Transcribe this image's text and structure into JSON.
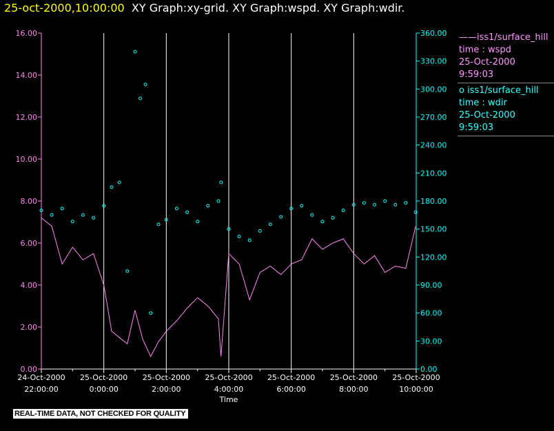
{
  "header": {
    "timestamp": "25-oct-2000,10:00:00",
    "graph_names": "XY Graph:xy-grid.  XY Graph:wspd.  XY Graph:wdir."
  },
  "legend": {
    "wspd": {
      "marker": "——",
      "source": "iss1/surface_hill",
      "field": "time : wspd",
      "date": "25-Oct-2000",
      "time": "9:59:03"
    },
    "wdir": {
      "marker": "o",
      "source": "iss1/surface_hill",
      "field": "time : wdir",
      "date": "25-Oct-2000",
      "time": "9:59:03"
    }
  },
  "notice": "REAL-TIME DATA, NOT CHECKED FOR QUALITY",
  "colors": {
    "wspd": "#ff88ee",
    "wdir": "#00ffff",
    "grid": "#ffffff"
  },
  "chart_data": {
    "type": "scatter",
    "xlabel": "Time",
    "x_range_hours": [
      -2,
      10
    ],
    "x_ticks": [
      {
        "h": -2,
        "date": "24-Oct-2000",
        "time": "22:00:00"
      },
      {
        "h": 0,
        "date": "25-Oct-2000",
        "time": "0:00:00"
      },
      {
        "h": 2,
        "date": "25-Oct-2000",
        "time": "2:00:00"
      },
      {
        "h": 4,
        "date": "25-Oct-2000",
        "time": "4:00:00"
      },
      {
        "h": 6,
        "date": "25-Oct-2000",
        "time": "6:00:00"
      },
      {
        "h": 8,
        "date": "25-Oct-2000",
        "time": "8:00:00"
      },
      {
        "h": 10,
        "date": "25-Oct-2000",
        "time": "10:00:00"
      }
    ],
    "left_axis": {
      "series": "wspd",
      "ylim": [
        0,
        16
      ],
      "ticks": [
        "0.00",
        "2.00",
        "4.00",
        "6.00",
        "8.00",
        "10.00",
        "12.00",
        "14.00",
        "16.00"
      ]
    },
    "right_axis": {
      "series": "wdir",
      "ylim": [
        0,
        360
      ],
      "ticks": [
        "0.00",
        "30.00",
        "60.00",
        "90.00",
        "120.00",
        "150.00",
        "180.00",
        "210.00",
        "240.00",
        "270.00",
        "300.00",
        "330.00",
        "360.00"
      ]
    },
    "grid": "vertical",
    "series": [
      {
        "name": "wspd",
        "style": "line",
        "axis": "left",
        "x": [
          "24-Oct-2000 22:00",
          "24-Oct-2000 22:20",
          "24-Oct-2000 22:40",
          "24-Oct-2000 23:00",
          "24-Oct-2000 23:20",
          "24-Oct-2000 23:40",
          "25-Oct-2000 0:00",
          "25-Oct-2000 0:15",
          "25-Oct-2000 0:30",
          "25-Oct-2000 0:45",
          "25-Oct-2000 1:00",
          "25-Oct-2000 1:15",
          "25-Oct-2000 1:30",
          "25-Oct-2000 1:45",
          "25-Oct-2000 2:00",
          "25-Oct-2000 2:20",
          "25-Oct-2000 2:40",
          "25-Oct-2000 3:00",
          "25-Oct-2000 3:20",
          "25-Oct-2000 3:40",
          "25-Oct-2000 3:45",
          "25-Oct-2000 4:00",
          "25-Oct-2000 4:20",
          "25-Oct-2000 4:40",
          "25-Oct-2000 5:00",
          "25-Oct-2000 5:20",
          "25-Oct-2000 5:40",
          "25-Oct-2000 6:00",
          "25-Oct-2000 6:20",
          "25-Oct-2000 6:40",
          "25-Oct-2000 7:00",
          "25-Oct-2000 7:20",
          "25-Oct-2000 7:40",
          "25-Oct-2000 8:00",
          "25-Oct-2000 8:20",
          "25-Oct-2000 8:40",
          "25-Oct-2000 9:00",
          "25-Oct-2000 9:20",
          "25-Oct-2000 9:40",
          "25-Oct-2000 9:59"
        ],
        "y": [
          7.2,
          6.8,
          5.0,
          5.8,
          5.2,
          5.5,
          4.0,
          1.8,
          1.5,
          1.2,
          2.8,
          1.4,
          0.6,
          1.3,
          1.8,
          2.3,
          2.9,
          3.4,
          3.0,
          2.4,
          0.6,
          5.5,
          5.0,
          3.3,
          4.6,
          4.9,
          4.5,
          5.0,
          5.2,
          6.2,
          5.7,
          6.0,
          6.2,
          5.5,
          5.0,
          5.4,
          4.6,
          4.9,
          4.8,
          6.8
        ]
      },
      {
        "name": "wdir",
        "style": "circles",
        "axis": "right",
        "x": [
          "24-Oct-2000 22:00",
          "24-Oct-2000 22:20",
          "24-Oct-2000 22:40",
          "24-Oct-2000 23:00",
          "24-Oct-2000 23:20",
          "24-Oct-2000 23:40",
          "25-Oct-2000 0:00",
          "25-Oct-2000 0:15",
          "25-Oct-2000 0:30",
          "25-Oct-2000 0:45",
          "25-Oct-2000 1:00",
          "25-Oct-2000 1:10",
          "25-Oct-2000 1:20",
          "25-Oct-2000 1:30",
          "25-Oct-2000 1:45",
          "25-Oct-2000 2:00",
          "25-Oct-2000 2:20",
          "25-Oct-2000 2:40",
          "25-Oct-2000 3:00",
          "25-Oct-2000 3:20",
          "25-Oct-2000 3:40",
          "25-Oct-2000 3:45",
          "25-Oct-2000 4:00",
          "25-Oct-2000 4:20",
          "25-Oct-2000 4:40",
          "25-Oct-2000 5:00",
          "25-Oct-2000 5:20",
          "25-Oct-2000 5:40",
          "25-Oct-2000 6:00",
          "25-Oct-2000 6:20",
          "25-Oct-2000 6:40",
          "25-Oct-2000 7:00",
          "25-Oct-2000 7:20",
          "25-Oct-2000 7:40",
          "25-Oct-2000 8:00",
          "25-Oct-2000 8:20",
          "25-Oct-2000 8:40",
          "25-Oct-2000 9:00",
          "25-Oct-2000 9:20",
          "25-Oct-2000 9:40",
          "25-Oct-2000 9:59"
        ],
        "y": [
          170,
          165,
          172,
          158,
          165,
          162,
          175,
          195,
          200,
          105,
          340,
          290,
          305,
          60,
          155,
          160,
          172,
          168,
          158,
          175,
          180,
          200,
          150,
          142,
          138,
          148,
          155,
          163,
          172,
          175,
          165,
          158,
          162,
          170,
          176,
          178,
          176,
          180,
          176,
          178,
          168
        ]
      }
    ]
  }
}
